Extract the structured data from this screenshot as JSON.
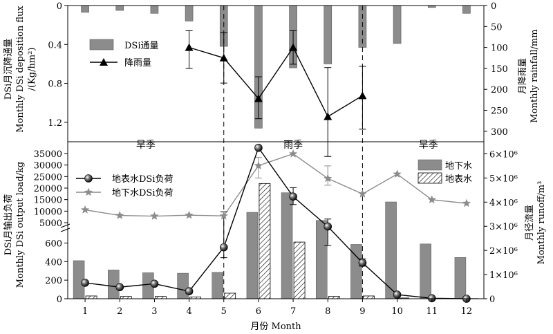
{
  "chart_data": [
    {
      "type": "bar+line",
      "panel": "top",
      "categories": [
        "1",
        "2",
        "3",
        "4",
        "5",
        "6",
        "7",
        "8",
        "9",
        "10",
        "11",
        "12"
      ],
      "ylabel_left": [
        "DSi月沉降通量",
        "Monthly DSi deposition flux",
        "/(Kg/hm²)"
      ],
      "ylabel_right": [
        "月降雨量",
        "Monthly rainfall/mm"
      ],
      "left_ticks": [
        "0",
        "0.4",
        "0.8",
        "1.2"
      ],
      "left_range": [
        0,
        1.4
      ],
      "left_inverted": true,
      "right_ticks": [
        "0",
        "50",
        "100",
        "150",
        "200",
        "250",
        "300"
      ],
      "right_range": [
        0,
        325
      ],
      "right_inverted": true,
      "series": [
        {
          "name": "DSi通量",
          "kind": "bar",
          "color": "#8c8c8c",
          "values": [
            0.07,
            0.05,
            0.08,
            0.16,
            0.42,
            1.26,
            0.64,
            0.6,
            0.43,
            0.39,
            0.02,
            0.08
          ]
        },
        {
          "name": "降雨量",
          "kind": "line",
          "marker": "triangle",
          "color": "#000000",
          "x": [
            4,
            5,
            6,
            7,
            8,
            9
          ],
          "values": [
            100,
            125,
            222,
            100,
            265,
            215
          ],
          "err": [
            [
              60,
              150
            ],
            [
              65,
              185
            ],
            [
              170,
              270
            ],
            [
              60,
              140
            ],
            [
              148,
              360
            ],
            [
              145,
              295
            ]
          ]
        }
      ]
    },
    {
      "type": "bar+line",
      "panel": "bottom",
      "categories": [
        "1",
        "2",
        "3",
        "4",
        "5",
        "6",
        "7",
        "8",
        "9",
        "10",
        "11",
        "12"
      ],
      "xlabel": "月份 Month",
      "ylabel_left": [
        "DSi月输出负荷",
        "Monthly DSi output load/kg"
      ],
      "ylabel_right": [
        "月径流量",
        "Monthly runoff/m³"
      ],
      "left_ticks_lower": [
        "0",
        "200",
        "400",
        "600"
      ],
      "left_ticks_upper": [
        "5000",
        "10000",
        "15000",
        "20000",
        "25000",
        "30000",
        "35000"
      ],
      "left_axis_break": [
        700,
        5000
      ],
      "right_ticks": [
        "0",
        "1×10⁶",
        "2×10⁶",
        "3×10⁶",
        "4×10⁶",
        "5×10⁶",
        "6×10⁶"
      ],
      "right_range": [
        0,
        6.5
      ],
      "right_unit": "10^6 m3",
      "seasons": [
        "旱季",
        "雨季",
        "旱季"
      ],
      "season_boundaries": [
        4.5,
        8.5
      ],
      "series": [
        {
          "name": "地下水",
          "kind": "bar",
          "axis": "left",
          "color": "#8c8c8c",
          "values": [
            410,
            310,
            280,
            275,
            285,
            9500,
            18000,
            6000,
            585,
            14000,
            590,
            445
          ]
        },
        {
          "name": "地表水",
          "kind": "bar",
          "axis": "left",
          "pattern": "hatch",
          "values": [
            30,
            25,
            25,
            20,
            60,
            22000,
            610,
            25,
            30,
            8,
            3,
            2
          ]
        },
        {
          "name": "地表水DSi负荷",
          "kind": "line",
          "axis": "right",
          "marker": "sphere",
          "color": "#000000",
          "values": [
            0.66,
            0.48,
            0.62,
            0.31,
            2.13,
            6.25,
            4.23,
            2.99,
            1.49,
            0.17,
            0.02,
            0.0
          ],
          "err_index": [
            3,
            4,
            6,
            7,
            8
          ],
          "err": [
            [
              0.22,
              0.4
            ],
            [
              1.7,
              3.6
            ],
            [
              3.9,
              4.6
            ],
            [
              2.2,
              3.3
            ],
            [
              1.35,
              1.65
            ]
          ]
        },
        {
          "name": "地下水DSi负荷",
          "kind": "line",
          "axis": "right",
          "marker": "star",
          "color": "#8c8c8c",
          "values": [
            3.68,
            3.45,
            3.42,
            3.46,
            3.43,
            5.51,
            6.0,
            4.98,
            4.34,
            5.16,
            4.1,
            3.95
          ],
          "err_index": [
            5,
            7
          ],
          "err": [
            [
              5.0,
              5.85
            ],
            [
              4.7,
              5.5
            ]
          ]
        }
      ]
    }
  ]
}
